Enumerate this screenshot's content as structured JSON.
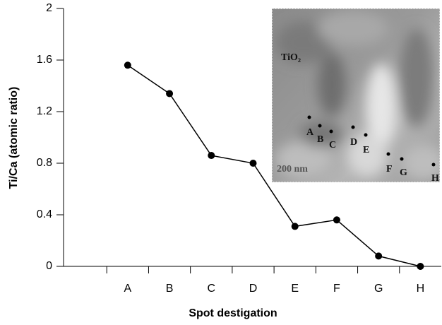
{
  "chart_data": {
    "type": "line",
    "xlabel": "Spot destigation",
    "ylabel": "Ti/Ca (atomic ratio)",
    "categories": [
      null,
      "A",
      "B",
      "C",
      "D",
      "E",
      "F",
      "G",
      "H"
    ],
    "values": [
      null,
      1.56,
      1.34,
      0.86,
      0.8,
      0.31,
      0.36,
      0.08,
      0
    ],
    "color": "#000000",
    "ylim": [
      0,
      2
    ],
    "yticks": [
      0,
      0.4,
      0.8,
      1.2,
      1.6,
      2
    ],
    "grid": false,
    "inset": {
      "label": "TiO₂",
      "scale": "200 nm",
      "spots": [
        "A",
        "B",
        "C",
        "D",
        "E",
        "F",
        "G",
        "H"
      ]
    }
  }
}
